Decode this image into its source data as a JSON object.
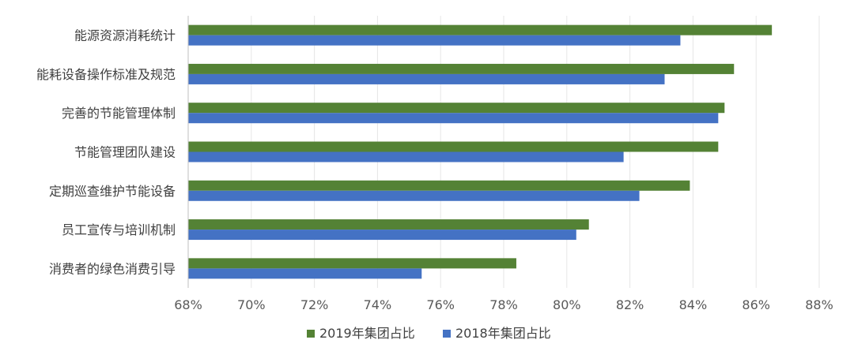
{
  "chart_data": {
    "type": "bar",
    "orientation": "horizontal",
    "categories": [
      "能源资源消耗统计",
      "能耗设备操作标准及规范",
      "完善的节能管理体制",
      "节能管理团队建设",
      "定期巡查维护节能设备",
      "员工宣传与培训机制",
      "消费者的绿色消费引导"
    ],
    "series": [
      {
        "name": "2019年集团占比",
        "color": "#548235",
        "values": [
          86.5,
          85.3,
          85.0,
          84.8,
          83.9,
          80.7,
          78.4
        ]
      },
      {
        "name": "2018年集团占比",
        "color": "#4472C4",
        "values": [
          83.6,
          83.1,
          84.8,
          81.8,
          82.3,
          80.3,
          75.4
        ]
      }
    ],
    "xlim": [
      68,
      88
    ],
    "xticks": [
      "68%",
      "70%",
      "72%",
      "74%",
      "76%",
      "78%",
      "80%",
      "82%",
      "84%",
      "86%",
      "88%"
    ],
    "grid": true,
    "legend": "bottom"
  }
}
